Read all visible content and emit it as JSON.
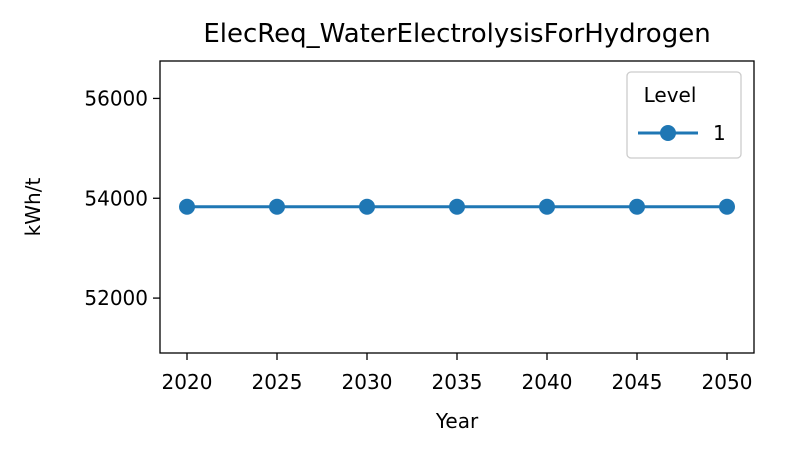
{
  "chart_data": {
    "type": "line",
    "title": "ElecReq_WaterElectrolysisForHydrogen",
    "xlabel": "Year",
    "ylabel": "kWh/t",
    "x": [
      2020,
      2025,
      2030,
      2035,
      2040,
      2045,
      2050
    ],
    "xticks": [
      "2020",
      "2025",
      "2030",
      "2035",
      "2040",
      "2045",
      "2050"
    ],
    "yticks": [
      "52000",
      "54000",
      "56000"
    ],
    "xlim": [
      2018.5,
      2051.5
    ],
    "ylim": [
      50900,
      56750
    ],
    "grid": false,
    "legend": {
      "title": "Level",
      "placement": "top-right"
    },
    "series": [
      {
        "name": "1",
        "color": "#1f77b4",
        "marker": "circle",
        "values": [
          53830,
          53830,
          53830,
          53830,
          53830,
          53830,
          53830
        ]
      }
    ]
  }
}
